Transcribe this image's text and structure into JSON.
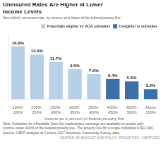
{
  "chart_data": {
    "type": "bar",
    "title": "Uninsured Rates Are Higher at Lower\nIncome Levels",
    "subtitle": "Non-elderly uninsured rate, by income as a share of the federal poverty line",
    "categories": [
      "138%-\n200%",
      "200%-\n250%",
      "250%-\n300%",
      "300%-\n350%",
      "350%-\n400%",
      "400%-\n450%",
      "450%-\n500%",
      "Above\n500%"
    ],
    "series": [
      {
        "name": "Potentially eligible\nfor ACA subsidies",
        "color": "#b8cfe8",
        "values": [
          16.6,
          14.0,
          11.7,
          9.5,
          7.9,
          null,
          null,
          null
        ],
        "value_labels": [
          "16.6%",
          "14.0%",
          "11.7%",
          "9.5%",
          "7.9%",
          null,
          null,
          null
        ]
      },
      {
        "name": "Ineligible for\nsubsidies",
        "color": "#3a6fa8",
        "values": [
          null,
          null,
          null,
          null,
          null,
          6.4,
          5.6,
          3.2
        ],
        "value_labels": [
          null,
          null,
          null,
          null,
          null,
          "6.4%",
          "5.6%",
          "3.2%"
        ]
      }
    ],
    "xlabel": "Income as a percent of federal poverty line",
    "ylim": [
      0,
      20
    ],
    "grid": false,
    "legend": "upper right",
    "data_labels": true,
    "tick_labels": "x",
    "notes": [
      "Note: Subsidies for Affordable Care Act marketplace coverage are available to people with",
      "income under 400% of the federal poverty line. The poverty line for a single individual is $12,490.",
      "Source: CBPP analysis of Census 2017 American Community Survey data."
    ],
    "footer": "CENTER ON BUDGET AND POLICY PRIORITIES : CBPP.ORG"
  }
}
